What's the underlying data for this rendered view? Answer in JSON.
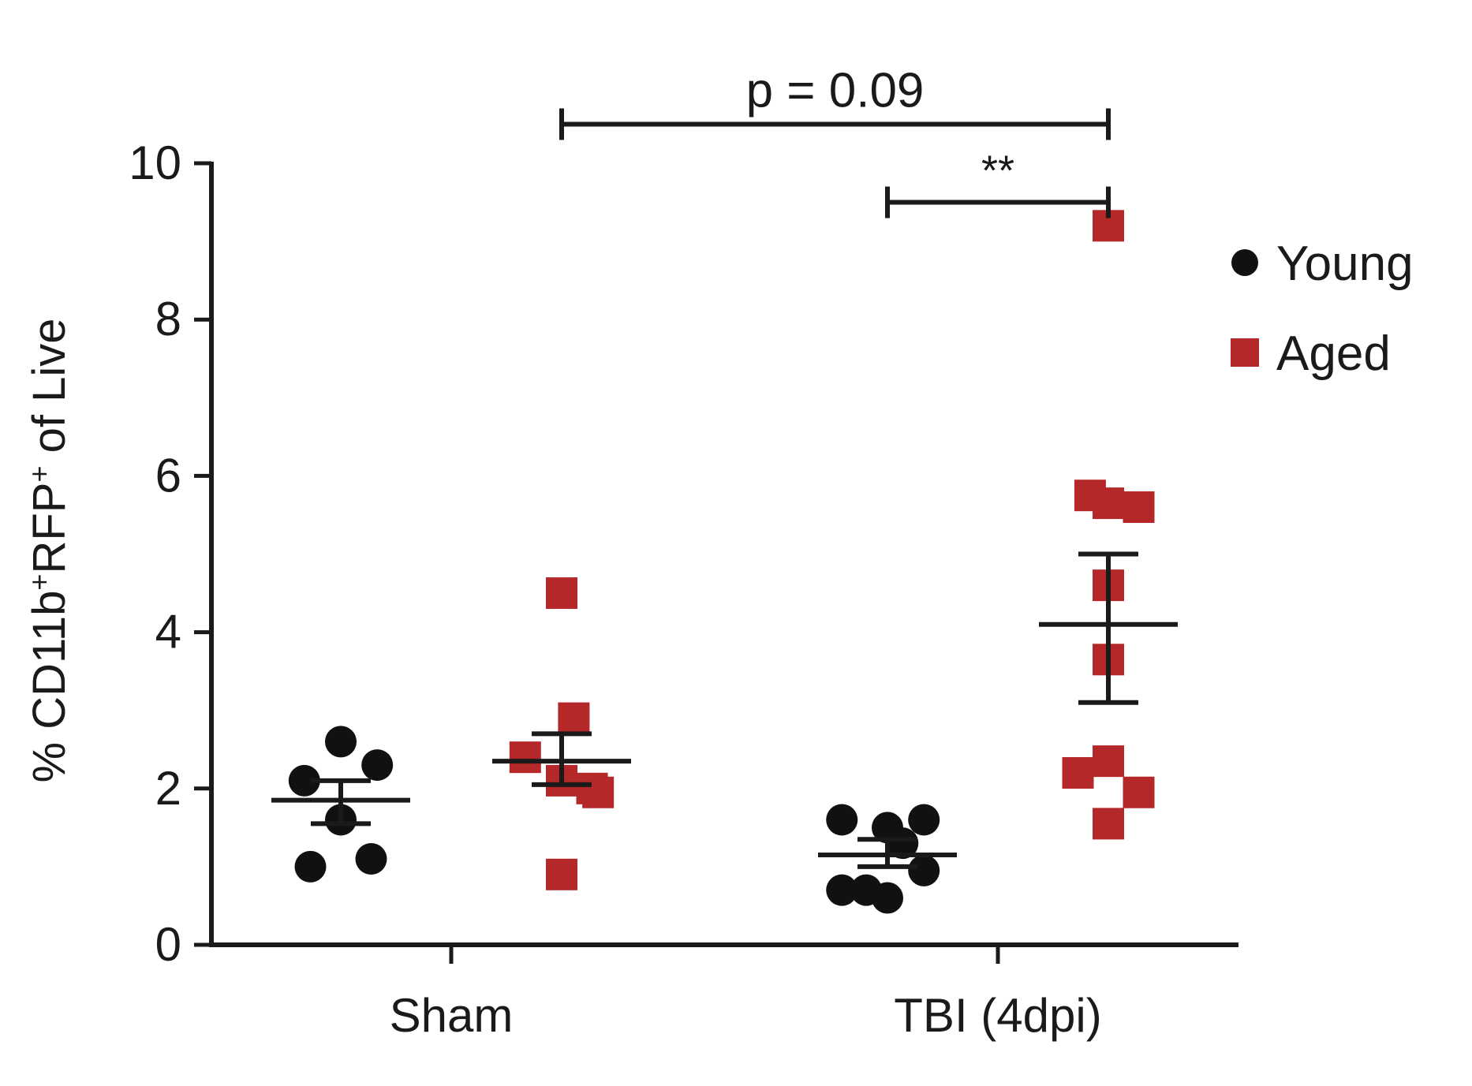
{
  "chart_data": {
    "type": "scatter",
    "title": "",
    "xlabel": "",
    "ylabel_parts": {
      "prefix": "% CD11b",
      "sup1": "+",
      "middle": "RFP",
      "sup2": "+",
      "suffix": " of Live"
    },
    "ylim": [
      0,
      10
    ],
    "yticks": [
      0,
      2,
      4,
      6,
      8,
      10
    ],
    "ytick_labels": [
      "0",
      "2",
      "4",
      "6",
      "8",
      "10"
    ],
    "categories": [
      "Sham",
      "TBI (4dpi)"
    ],
    "series": [
      {
        "name": "Young",
        "marker": "circle",
        "color": "#111111",
        "groups": [
          {
            "category": "Sham",
            "offset": -0.2,
            "points": [
              [
                -0.12,
                2.1
              ],
              [
                0.0,
                1.6
              ],
              [
                0.12,
                2.3
              ],
              [
                0.0,
                2.6
              ],
              [
                -0.1,
                1.0
              ],
              [
                0.1,
                1.1
              ]
            ],
            "mean": 1.85,
            "sem_low": 1.55,
            "sem_high": 2.1
          },
          {
            "category": "TBI (4dpi)",
            "offset": -0.2,
            "points": [
              [
                -0.15,
                1.6
              ],
              [
                -0.07,
                0.7
              ],
              [
                0.0,
                1.5
              ],
              [
                0.05,
                1.3
              ],
              [
                0.12,
                1.6
              ],
              [
                -0.15,
                0.7
              ],
              [
                0.0,
                0.6
              ],
              [
                0.12,
                0.95
              ]
            ],
            "mean": 1.15,
            "sem_low": 1.0,
            "sem_high": 1.35
          }
        ]
      },
      {
        "name": "Aged",
        "marker": "square",
        "color": "#b5282a",
        "groups": [
          {
            "category": "Sham",
            "offset": 0.2,
            "points": [
              [
                0.0,
                4.5
              ],
              [
                0.04,
                2.9
              ],
              [
                -0.12,
                2.4
              ],
              [
                0.0,
                2.1
              ],
              [
                0.1,
                2.0
              ],
              [
                0.12,
                1.95
              ],
              [
                0.0,
                0.9
              ]
            ],
            "mean": 2.35,
            "sem_low": 2.05,
            "sem_high": 2.7
          },
          {
            "category": "TBI (4dpi)",
            "offset": 0.2,
            "points": [
              [
                0.0,
                9.2
              ],
              [
                -0.06,
                5.75
              ],
              [
                0.0,
                5.65
              ],
              [
                0.1,
                5.6
              ],
              [
                0.0,
                4.6
              ],
              [
                0.0,
                3.65
              ],
              [
                -0.1,
                2.2
              ],
              [
                0.0,
                2.35
              ],
              [
                0.1,
                1.95
              ],
              [
                0.0,
                1.55
              ]
            ],
            "mean": 4.1,
            "sem_low": 3.1,
            "sem_high": 5.0
          }
        ]
      }
    ],
    "annotations": [
      {
        "text": "p = 0.09",
        "from": [
          "Sham",
          0.2
        ],
        "to": [
          "TBI (4dpi)",
          0.2
        ],
        "y": 10.5
      },
      {
        "text": "**",
        "from": [
          "TBI (4dpi)",
          -0.2
        ],
        "to": [
          "TBI (4dpi)",
          0.2
        ],
        "y": 9.5
      }
    ],
    "legend": {
      "position": "top-right",
      "entries": [
        "Young",
        "Aged"
      ]
    }
  }
}
